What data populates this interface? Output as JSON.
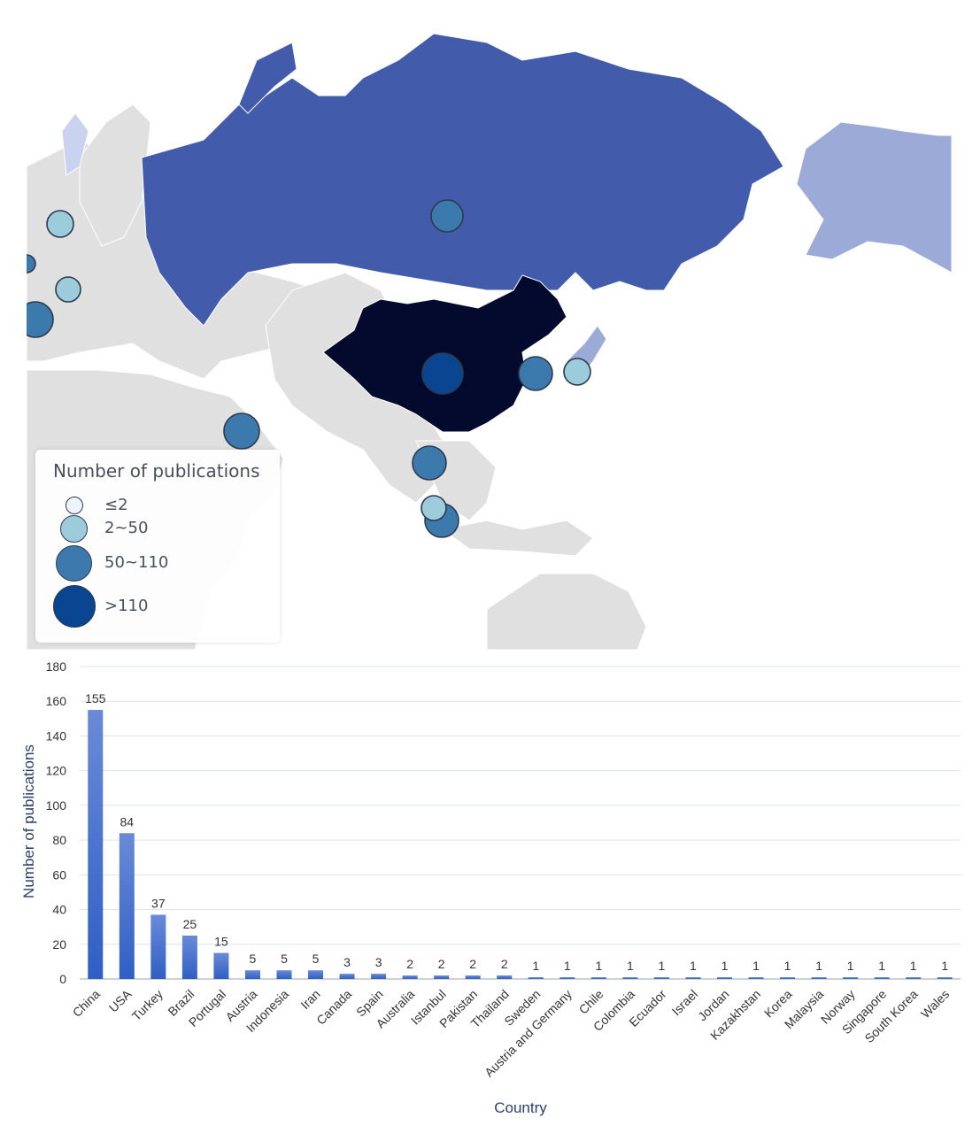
{
  "map": {
    "legend": {
      "title": "Number of publications",
      "items": [
        {
          "label": "≤2",
          "color": "#eef2fa"
        },
        {
          "label": "2~50",
          "color": "#9ccbdb"
        },
        {
          "label": "50~110",
          "color": "#3c7aad"
        },
        {
          "label": ">110",
          "color": "#0a4592"
        }
      ]
    },
    "colors": {
      "land": "#e0e0e0",
      "russia": "#425cab",
      "china": "#030a2e",
      "light_blue_region": "#9baad6",
      "pale_region": "#c9d2ee"
    }
  },
  "chart_data": {
    "type": "bar",
    "xlabel": "Country",
    "ylabel": "Number of publications",
    "ylim": [
      0,
      180
    ],
    "yticks": [
      0,
      20,
      40,
      60,
      80,
      100,
      120,
      140,
      160,
      180
    ],
    "grid": true,
    "bar_color_top": "#6a8ad8",
    "bar_color_bottom": "#2f5fc4",
    "categories": [
      "China",
      "USA",
      "Turkey",
      "Brazil",
      "Portugal",
      "Austria",
      "Indonesia",
      "Iran",
      "Canada",
      "Spain",
      "Australia",
      "Istanbul",
      "Pakistan",
      "Thailand",
      "Sweden",
      "Austria and Germany",
      "Chile",
      "Colombia",
      "Ecuador",
      "Israel",
      "Jordan",
      "Kazakhstan",
      "Korea",
      "Malaysia",
      "Norway",
      "Singapore",
      "South Korea",
      "Wales"
    ],
    "values": [
      155,
      84,
      37,
      25,
      15,
      5,
      5,
      5,
      3,
      3,
      2,
      2,
      2,
      2,
      1,
      1,
      1,
      1,
      1,
      1,
      1,
      1,
      1,
      1,
      1,
      1,
      1,
      1
    ]
  }
}
